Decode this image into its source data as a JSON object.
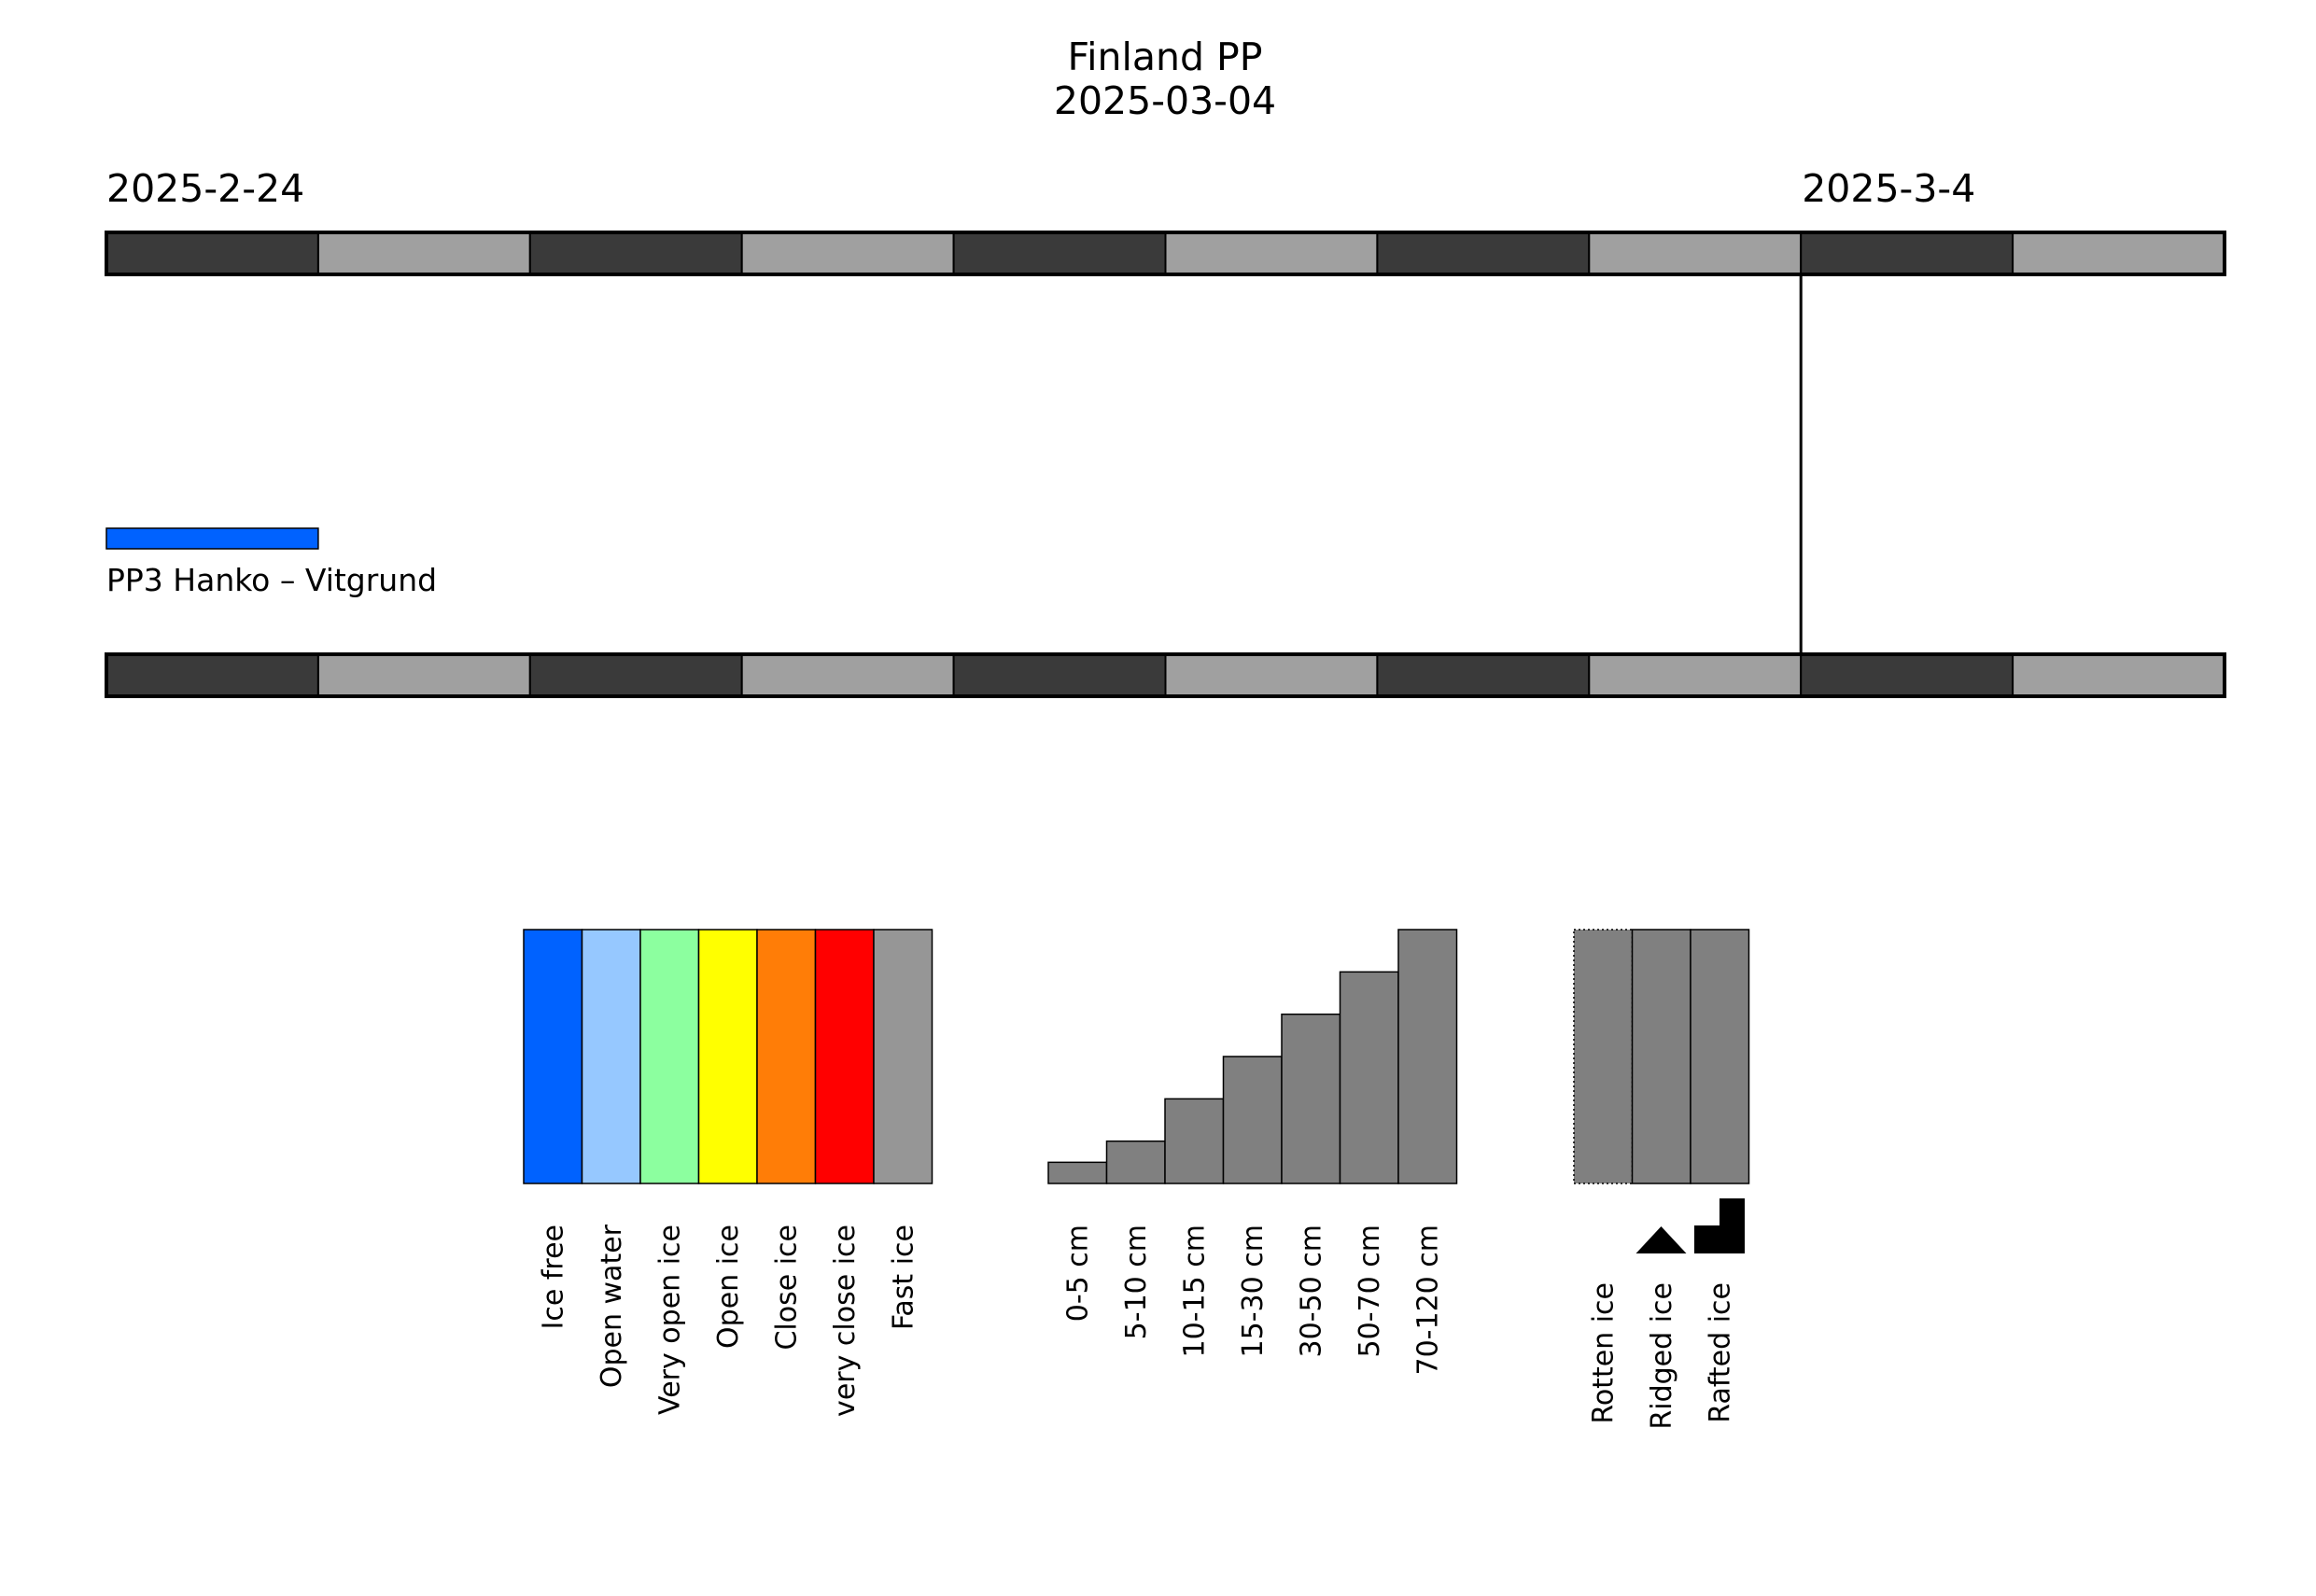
{
  "chart_data": {
    "type": "timeline",
    "title": "Finland PP",
    "subtitle": "2025-03-04",
    "timeline": {
      "start_label": "2025-2-24",
      "current_label": "2025-3-4",
      "days": [
        "2025-02-24",
        "2025-02-25",
        "2025-02-26",
        "2025-02-27",
        "2025-02-28",
        "2025-03-01",
        "2025-03-02",
        "2025-03-03",
        "2025-03-04",
        "2025-03-05"
      ],
      "current_date": "2025-03-04",
      "day_colors": [
        "#3a3a3a",
        "#a0a0a0"
      ]
    },
    "stations": [
      {
        "name": "PP3 Hanko – Vitgrund",
        "periods": [
          {
            "start": "2025-02-24",
            "end": "2025-02-24",
            "category": "Ice free",
            "color": "#0062ff"
          }
        ]
      }
    ],
    "legend_concentration": [
      {
        "label": "Ice free",
        "color": "#0062ff"
      },
      {
        "label": "Open water",
        "color": "#96c8ff"
      },
      {
        "label": "Very open ice",
        "color": "#8cff9f"
      },
      {
        "label": "Open ice",
        "color": "#ffff00"
      },
      {
        "label": "Close ice",
        "color": "#ff7d07"
      },
      {
        "label": "very close ice",
        "color": "#ff0000"
      },
      {
        "label": "Fast ice",
        "color": "#969696"
      }
    ],
    "legend_thickness": [
      {
        "label": "0-5 cm",
        "level": 1
      },
      {
        "label": "5-10 cm",
        "level": 2
      },
      {
        "label": "10-15 cm",
        "level": 4
      },
      {
        "label": "15-30 cm",
        "level": 6
      },
      {
        "label": "30-50 cm",
        "level": 8
      },
      {
        "label": "50-70 cm",
        "level": 10
      },
      {
        "label": "70-120 cm",
        "level": 12
      }
    ],
    "thickness_max_level": 12,
    "thickness_color": "#808080",
    "legend_ice_types": [
      {
        "label": "Rotten ice",
        "symbol": "dotted-border"
      },
      {
        "label": "Ridged ice",
        "symbol": "triangle"
      },
      {
        "label": "Rafted ice",
        "symbol": "step"
      }
    ]
  }
}
